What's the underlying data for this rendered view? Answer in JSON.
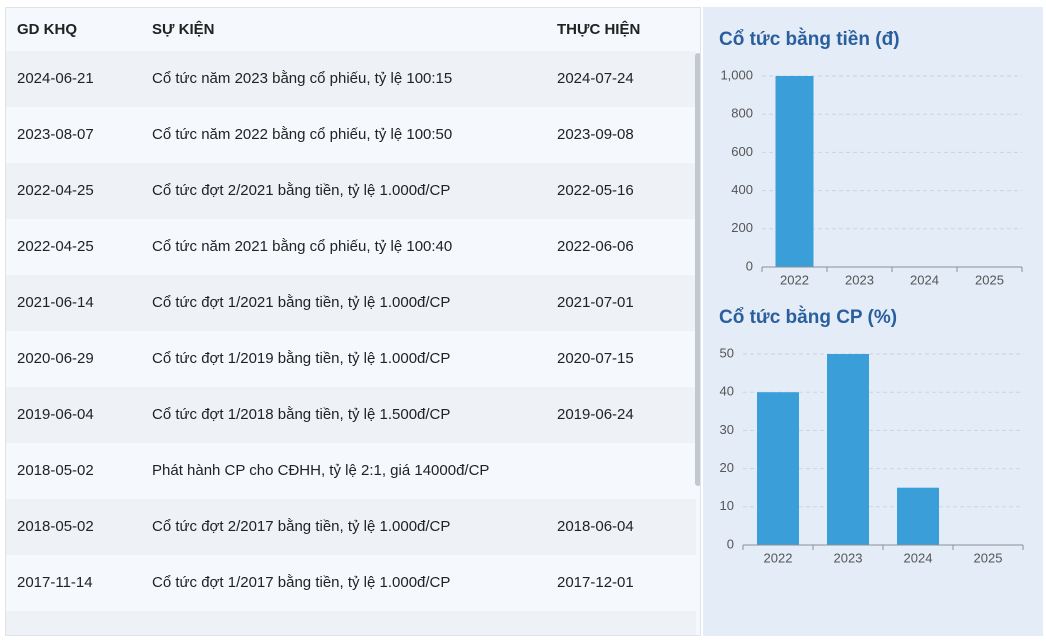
{
  "table": {
    "columns": [
      "GD KHQ",
      "SỰ KIỆN",
      "THỰC HIỆN"
    ],
    "rows": [
      [
        "2024-06-21",
        "Cổ tức năm 2023 bằng cổ phiếu, tỷ lệ 100:15",
        "2024-07-24"
      ],
      [
        "2023-08-07",
        "Cổ tức năm 2022 bằng cổ phiếu, tỷ lệ 100:50",
        "2023-09-08"
      ],
      [
        "2022-04-25",
        "Cổ tức đợt 2/2021 bằng tiền, tỷ lệ 1.000đ/CP",
        "2022-05-16"
      ],
      [
        "2022-04-25",
        "Cổ tức năm 2021 bằng cổ phiếu, tỷ lệ 100:40",
        "2022-06-06"
      ],
      [
        "2021-06-14",
        "Cổ tức đợt 1/2021 bằng tiền, tỷ lệ 1.000đ/CP",
        "2021-07-01"
      ],
      [
        "2020-06-29",
        "Cổ tức đợt 1/2019 bằng tiền, tỷ lệ 1.000đ/CP",
        "2020-07-15"
      ],
      [
        "2019-06-04",
        "Cổ tức đợt 1/2018 bằng tiền, tỷ lệ 1.500đ/CP",
        "2019-06-24"
      ],
      [
        "2018-05-02",
        "Phát hành CP cho CĐHH, tỷ lệ 2:1, giá 14000đ/CP",
        null
      ],
      [
        "2018-05-02",
        "Cổ tức đợt 2/2017 bằng tiền, tỷ lệ 1.000đ/CP",
        "2018-06-04"
      ],
      [
        "2017-11-14",
        "Cổ tức đợt 1/2017 bằng tiền, tỷ lệ 1.000đ/CP",
        "2017-12-01"
      ]
    ]
  },
  "chart_data": [
    {
      "type": "bar",
      "title": "Cổ tức bằng tiền (đ)",
      "categories": [
        "2022",
        "2023",
        "2024",
        "2025"
      ],
      "values": [
        1000,
        0,
        0,
        0
      ],
      "color": "#3a9fd8",
      "ylim": [
        0,
        1000
      ],
      "yticks": [
        0,
        200,
        400,
        600,
        800,
        {
          "value": 1000,
          "label": "1,000"
        }
      ],
      "grid": true
    },
    {
      "type": "bar",
      "title": "Cổ tức bằng CP (%)",
      "categories": [
        "2022",
        "2023",
        "2024",
        "2025"
      ],
      "values": [
        40,
        50,
        15,
        0
      ],
      "color": "#3a9fd8",
      "ylim": [
        0,
        50
      ],
      "yticks": [
        0,
        10,
        20,
        30,
        40,
        50
      ],
      "grid": true
    }
  ]
}
